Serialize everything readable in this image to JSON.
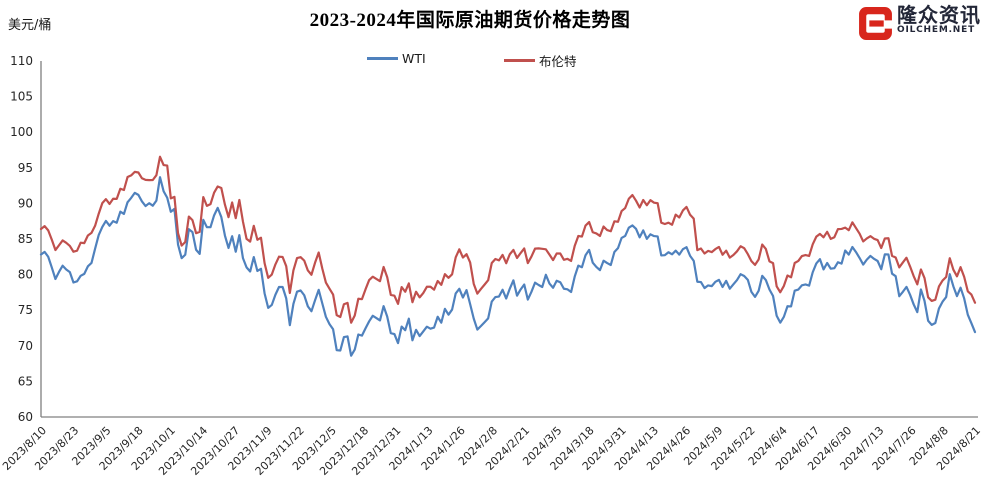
{
  "header": {
    "title": "2023-2024年国际原油期货价格走势图",
    "y_unit": "美元/桶",
    "logo": {
      "brand": "隆众资讯",
      "domain": "OILCHEM.NET",
      "icon": "oilchem-e-icon",
      "icon_color": "#d8261c",
      "text_color": "#232738"
    }
  },
  "legend": [
    {
      "label": "WTI",
      "color": "#4f81bd"
    },
    {
      "label": "布伦特",
      "color": "#c0504d"
    }
  ],
  "chart_data": {
    "type": "line",
    "title": "2023-2024年国际原油期货价格走势图",
    "xlabel": "",
    "ylabel": "美元/桶",
    "ylim": [
      60,
      110
    ],
    "y_ticks": [
      60,
      65,
      70,
      75,
      80,
      85,
      90,
      95,
      100,
      105,
      110
    ],
    "grid": false,
    "legend_position": "top",
    "axis_color": "#808080",
    "x_tick_labels": [
      "2023/8/10",
      "2023/8/23",
      "2023/9/5",
      "2023/9/18",
      "2023/10/1",
      "2023/10/14",
      "2023/10/27",
      "2023/11/9",
      "2023/11/22",
      "2023/12/5",
      "2023/12/18",
      "2023/12/31",
      "2024/1/13",
      "2024/1/26",
      "2024/2/8",
      "2024/2/21",
      "2024/3/5",
      "2024/3/18",
      "2024/3/31",
      "2024/4/13",
      "2024/4/26",
      "2024/5/9",
      "2024/5/22",
      "2024/6/4",
      "2024/6/17",
      "2024/6/30",
      "2024/7/13",
      "2024/7/26",
      "2024/8/8",
      "2024/8/21"
    ],
    "x_range_note": "daily settlement prices, 2023/8/10 - 2024/8/21",
    "series": [
      {
        "name": "WTI",
        "color": "#4f81bd",
        "values": [
          82.82,
          83.19,
          82.51,
          80.99,
          79.38,
          80.39,
          81.25,
          80.72,
          80.35,
          78.89,
          79.05,
          79.83,
          80.1,
          81.16,
          81.63,
          83.63,
          85.55,
          86.69,
          87.54,
          86.87,
          87.51,
          87.29,
          88.84,
          88.52,
          90.16,
          90.77,
          91.48,
          91.2,
          90.28,
          89.63,
          90.03,
          89.68,
          90.39,
          93.68,
          91.71,
          90.79,
          88.82,
          89.23,
          84.22,
          82.31,
          82.79,
          86.38,
          85.97,
          83.49,
          82.91,
          87.69,
          86.66,
          86.66,
          88.32,
          89.37,
          88.08,
          85.49,
          83.74,
          85.39,
          83.21,
          85.54,
          82.31,
          81.02,
          80.44,
          82.46,
          80.51,
          80.82,
          77.37,
          75.33,
          75.74,
          77.17,
          78.26,
          78.26,
          76.66,
          72.9,
          75.89,
          77.6,
          77.77,
          77.1,
          75.54,
          74.86,
          76.41,
          77.86,
          75.96,
          74.07,
          73.04,
          72.32,
          69.38,
          69.34,
          71.23,
          71.32,
          68.61,
          69.47,
          71.58,
          71.43,
          72.47,
          73.44,
          74.22,
          73.89,
          73.56,
          75.57,
          74.11,
          71.77,
          71.65,
          70.38,
          72.7,
          72.19,
          73.81,
          70.77,
          72.24,
          71.37,
          72.02,
          72.68,
          72.4,
          72.56,
          74.08,
          73.25,
          75.19,
          74.37,
          75.09,
          77.36,
          78.01,
          76.78,
          77.82,
          75.85,
          73.82,
          72.28,
          72.78,
          73.31,
          73.86,
          76.22,
          76.84,
          76.92,
          77.87,
          76.64,
          78.03,
          79.19,
          77.04,
          77.91,
          78.61,
          76.49,
          77.58,
          78.87,
          78.54,
          78.26,
          79.97,
          78.74,
          78.15,
          79.13,
          78.93,
          78.01,
          77.93,
          77.56,
          79.72,
          81.26,
          81.04,
          82.72,
          83.47,
          81.68,
          81.07,
          80.63,
          81.95,
          81.62,
          81.35,
          83.17,
          83.71,
          85.15,
          85.43,
          86.59,
          86.91,
          86.43,
          85.23,
          86.21,
          85.02,
          85.66,
          85.41,
          85.36,
          82.69,
          82.73,
          83.14,
          82.85,
          83.36,
          82.81,
          83.57,
          83.85,
          82.63,
          81.93,
          79.0,
          78.95,
          78.11,
          78.48,
          78.38,
          78.99,
          79.26,
          78.26,
          79.12,
          78.02,
          78.63,
          79.23,
          80.06,
          79.8,
          79.26,
          77.57,
          76.87,
          77.72,
          79.83,
          79.23,
          77.91,
          76.99,
          74.22,
          73.25,
          74.07,
          75.55,
          75.53,
          77.74,
          77.9,
          78.5,
          78.62,
          78.45,
          80.33,
          81.57,
          82.17,
          80.73,
          81.63,
          80.83,
          80.9,
          81.74,
          81.54,
          83.38,
          82.81,
          83.88,
          83.16,
          82.33,
          81.41,
          82.1,
          82.62,
          82.21,
          81.91,
          80.76,
          82.85,
          82.82,
          80.13,
          79.78,
          76.96,
          77.59,
          78.28,
          77.16,
          75.81,
          74.73,
          77.91,
          76.31,
          73.52,
          72.94,
          73.2,
          75.23,
          76.19,
          76.84,
          80.06,
          78.35,
          76.98,
          78.16,
          76.65,
          74.37,
          73.17,
          71.93
        ]
      },
      {
        "name": "布伦特",
        "color": "#c0504d",
        "values": [
          86.4,
          86.81,
          86.21,
          84.89,
          83.45,
          84.12,
          84.8,
          84.46,
          84.03,
          83.21,
          83.36,
          84.48,
          84.42,
          85.49,
          85.86,
          86.86,
          88.55,
          90.04,
          90.6,
          89.92,
          90.65,
          90.64,
          92.06,
          91.88,
          93.7,
          93.93,
          94.43,
          94.34,
          93.53,
          93.3,
          93.27,
          93.29,
          93.96,
          96.55,
          95.38,
          95.31,
          90.71,
          90.92,
          85.81,
          84.07,
          84.58,
          88.15,
          87.65,
          85.82,
          86.0,
          90.89,
          89.65,
          89.9,
          91.5,
          92.38,
          92.16,
          89.83,
          88.07,
          90.13,
          87.93,
          90.48,
          87.45,
          85.02,
          84.63,
          86.85,
          84.89,
          85.18,
          81.61,
          79.54,
          80.01,
          81.43,
          82.52,
          82.47,
          81.18,
          77.42,
          80.61,
          82.32,
          82.45,
          81.96,
          80.58,
          79.98,
          81.68,
          83.1,
          80.86,
          78.88,
          78.03,
          77.2,
          74.3,
          74.05,
          75.84,
          76.03,
          73.24,
          74.26,
          76.61,
          76.55,
          77.95,
          79.23,
          79.7,
          79.39,
          79.07,
          81.07,
          79.65,
          77.15,
          77.04,
          75.89,
          78.25,
          77.59,
          78.76,
          76.12,
          77.59,
          76.8,
          77.41,
          78.29,
          78.29,
          77.88,
          79.1,
          78.56,
          80.06,
          79.55,
          80.04,
          82.43,
          83.55,
          82.4,
          82.87,
          81.71,
          78.7,
          77.33,
          77.99,
          78.59,
          79.21,
          81.63,
          82.19,
          82.0,
          82.77,
          81.6,
          82.86,
          83.47,
          82.34,
          83.03,
          83.67,
          81.62,
          82.53,
          83.65,
          83.68,
          83.62,
          83.55,
          82.8,
          82.04,
          82.96,
          82.96,
          82.08,
          82.21,
          81.92,
          84.03,
          85.42,
          85.34,
          86.89,
          87.38,
          85.95,
          85.78,
          85.43,
          86.75,
          86.25,
          86.09,
          87.48,
          87.42,
          88.92,
          89.35,
          90.65,
          91.17,
          90.38,
          89.42,
          90.48,
          89.74,
          90.45,
          90.1,
          90.02,
          87.29,
          87.11,
          87.29,
          87.0,
          88.42,
          88.02,
          89.01,
          89.5,
          88.4,
          87.86,
          83.44,
          83.67,
          82.96,
          83.33,
          83.16,
          83.58,
          83.88,
          82.79,
          83.36,
          82.38,
          82.75,
          83.27,
          83.98,
          83.71,
          82.88,
          81.9,
          81.36,
          82.12,
          84.22,
          83.6,
          81.86,
          81.62,
          78.36,
          77.52,
          78.41,
          79.87,
          79.62,
          81.63,
          81.92,
          82.6,
          82.75,
          82.62,
          84.25,
          85.33,
          85.71,
          85.24,
          86.01,
          85.01,
          85.25,
          86.39,
          86.41,
          86.6,
          86.24,
          87.34,
          86.54,
          85.75,
          84.66,
          85.08,
          85.4,
          85.03,
          84.85,
          83.73,
          85.08,
          85.11,
          82.63,
          82.4,
          81.01,
          81.71,
          82.37,
          81.13,
          79.78,
          78.63,
          80.72,
          79.52,
          76.81,
          76.3,
          76.48,
          78.33,
          79.16,
          79.66,
          82.3,
          80.69,
          79.76,
          81.04,
          79.68,
          77.66,
          77.2,
          76.05
        ]
      }
    ]
  }
}
